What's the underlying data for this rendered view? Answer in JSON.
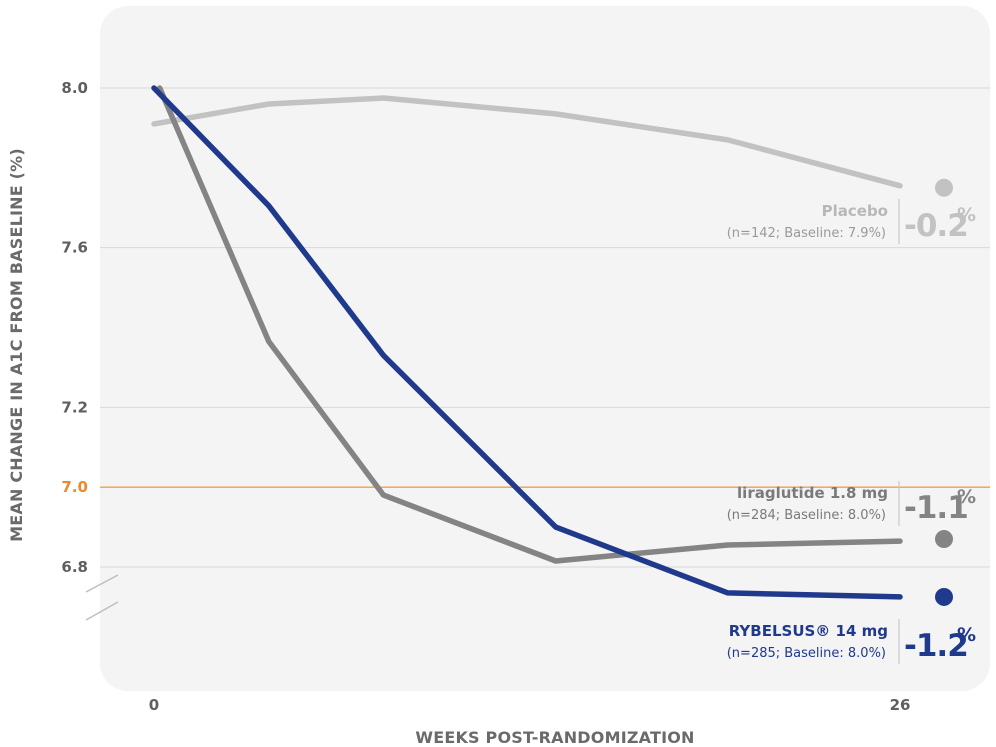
{
  "chart_data": {
    "type": "line",
    "title": "",
    "xlabel": "WEEKS POST-RANDOMIZATION",
    "ylabel": "MEAN CHANGE IN A1C FROM BASELINE (%)",
    "x_ticks": [
      "0",
      "26"
    ],
    "y_ticks": [
      {
        "value": 8.0,
        "label": "8.0"
      },
      {
        "value": 7.6,
        "label": "7.6"
      },
      {
        "value": 7.2,
        "label": "7.2"
      },
      {
        "value": 7.0,
        "label": "7.0",
        "highlight": true
      },
      {
        "value": 6.8,
        "label": "6.8"
      }
    ],
    "x_range": [
      0,
      26
    ],
    "y_range": [
      6.5,
      8.2
    ],
    "reference_line": {
      "value": 7.0,
      "color": "#f0a04b"
    },
    "series": [
      {
        "name": "Placebo",
        "color": "#c2c2c2",
        "x": [
          0,
          4,
          8,
          14,
          20,
          26
        ],
        "y": [
          7.91,
          7.96,
          7.975,
          7.935,
          7.87,
          7.755
        ],
        "end_marker_y": 7.75,
        "label_name": "Placebo",
        "label_sub": "(n=142; Baseline: 7.9%)",
        "label_value": "-0.2",
        "label_unit": "%"
      },
      {
        "name": "liraglutide 1.8 mg",
        "color": "#848485",
        "x": [
          0.2,
          4,
          8,
          14,
          20,
          26
        ],
        "y": [
          8.0,
          7.365,
          6.98,
          6.815,
          6.855,
          6.865
        ],
        "end_marker_y": 6.87,
        "label_name": "liraglutide 1.8 mg",
        "label_sub": "(n=284; Baseline: 8.0%)",
        "label_value": "-1.1",
        "label_unit": "%"
      },
      {
        "name": "RYBELSUS® 14 mg",
        "color": "#1f3a8c",
        "x": [
          0,
          4,
          8,
          14,
          20,
          26
        ],
        "y": [
          8.0,
          7.705,
          7.33,
          6.9,
          6.735,
          6.725
        ],
        "end_marker_y": 6.725,
        "label_name": "RYBELSUS® 14 mg",
        "label_sub": "(n=285; Baseline: 8.0%)",
        "label_value": "-1.2",
        "label_unit": "%"
      }
    ],
    "grid": true,
    "axis_break": true
  }
}
